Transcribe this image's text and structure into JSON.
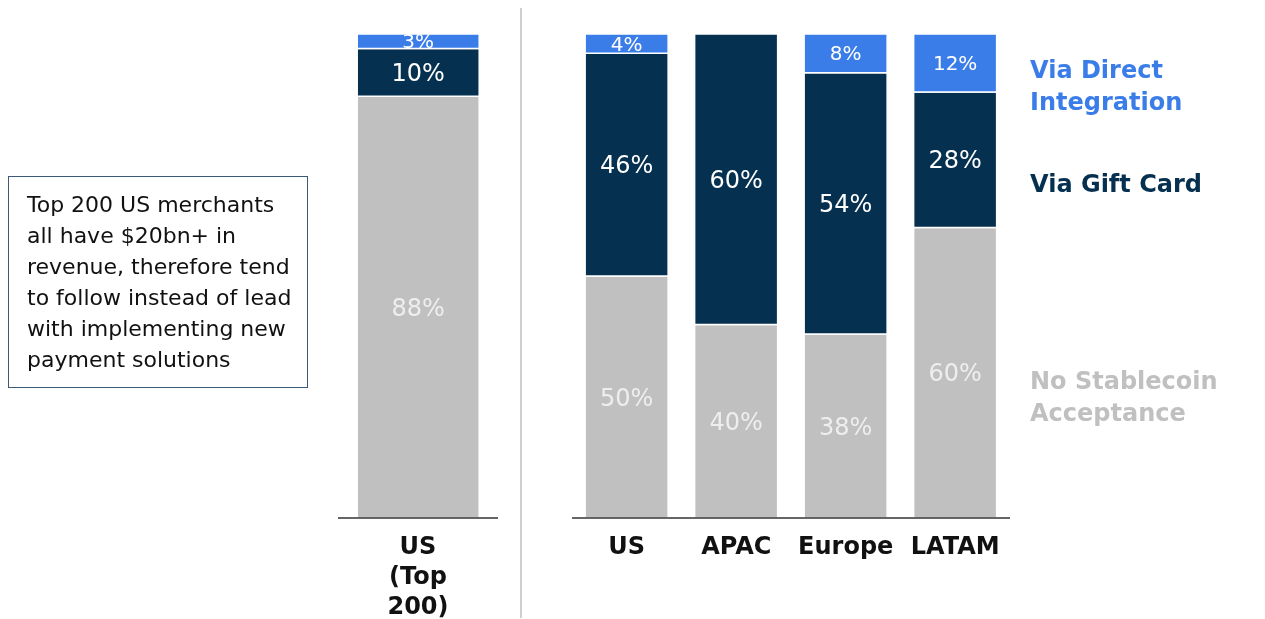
{
  "chart_data": [
    {
      "type": "bar",
      "stacked": true,
      "categories": [
        "US (Top 200)"
      ],
      "series": [
        {
          "color": "#c0c0c0",
          "values": [
            88
          ],
          "value_labels": [
            "88%"
          ]
        },
        {
          "color": "#06304f",
          "values": [
            10
          ],
          "value_labels": [
            "10%"
          ]
        },
        {
          "color": "#3b7de8",
          "values": [
            3
          ],
          "value_labels": [
            "3%"
          ]
        }
      ],
      "annotations": [
        "Top 200 US merchants all have $20bn+ in revenue, therefore tend to follow instead of lead with implementing new payment solutions"
      ]
    },
    {
      "type": "bar",
      "stacked": true,
      "categories": [
        "US",
        "APAC",
        "Europe",
        "LATAM"
      ],
      "series": [
        {
          "name": "No Stablecoin Acceptance",
          "color": "#c0c0c0",
          "values": [
            50,
            40,
            38,
            60
          ],
          "value_labels": [
            "50%",
            "40%",
            "38%",
            "60%"
          ]
        },
        {
          "name": "Via Gift Card",
          "color": "#06304f",
          "values": [
            46,
            60,
            54,
            28
          ],
          "value_labels": [
            "46%",
            "60%",
            "54%",
            "28%"
          ]
        },
        {
          "name": "Via Direct Integration",
          "color": "#3b7de8",
          "values": [
            4,
            null,
            8,
            12
          ],
          "value_labels": [
            "4%",
            null,
            "8%",
            "12%"
          ]
        }
      ],
      "legend": "right"
    }
  ]
}
